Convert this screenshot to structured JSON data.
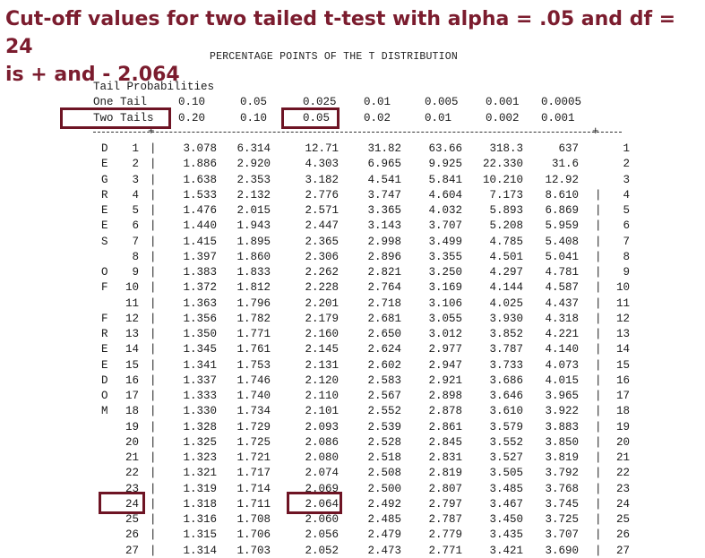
{
  "headline": {
    "line1": "Cut-off values for two tailed t-test with alpha = .05 and df = 24",
    "line2": "is + and - 2.064"
  },
  "subtitle": "PERCENTAGE POINTS OF THE T DISTRIBUTION",
  "table": {
    "tail_heading": "Tail Probabilities",
    "one_tail_label": "One Tail",
    "two_tails_label": "Two Tails",
    "one_tail_values": [
      "0.10",
      "0.05",
      "0.025",
      "0.01",
      "0.005",
      "0.001",
      "0.0005"
    ],
    "two_tail_values": [
      "0.20",
      "0.10",
      "0.05",
      "0.02",
      "0.01",
      "0.002",
      "0.001"
    ],
    "side_letters": [
      "D",
      "E",
      "G",
      "R",
      "E",
      "E",
      "S",
      "",
      "O",
      "F",
      "",
      "F",
      "R",
      "E",
      "E",
      "D",
      "O",
      "M",
      "",
      "",
      "",
      "",
      "",
      "",
      "",
      "",
      ""
    ],
    "rows": [
      {
        "df": "1",
        "v": [
          "3.078",
          "6.314",
          "12.71",
          "31.82",
          "63.66",
          "318.3",
          "637"
        ]
      },
      {
        "df": "2",
        "v": [
          "1.886",
          "2.920",
          "4.303",
          "6.965",
          "9.925",
          "22.330",
          "31.6"
        ]
      },
      {
        "df": "3",
        "v": [
          "1.638",
          "2.353",
          "3.182",
          "4.541",
          "5.841",
          "10.210",
          "12.92"
        ]
      },
      {
        "df": "4",
        "v": [
          "1.533",
          "2.132",
          "2.776",
          "3.747",
          "4.604",
          "7.173",
          "8.610"
        ]
      },
      {
        "df": "5",
        "v": [
          "1.476",
          "2.015",
          "2.571",
          "3.365",
          "4.032",
          "5.893",
          "6.869"
        ]
      },
      {
        "df": "6",
        "v": [
          "1.440",
          "1.943",
          "2.447",
          "3.143",
          "3.707",
          "5.208",
          "5.959"
        ]
      },
      {
        "df": "7",
        "v": [
          "1.415",
          "1.895",
          "2.365",
          "2.998",
          "3.499",
          "4.785",
          "5.408"
        ]
      },
      {
        "df": "8",
        "v": [
          "1.397",
          "1.860",
          "2.306",
          "2.896",
          "3.355",
          "4.501",
          "5.041"
        ]
      },
      {
        "df": "9",
        "v": [
          "1.383",
          "1.833",
          "2.262",
          "2.821",
          "3.250",
          "4.297",
          "4.781"
        ]
      },
      {
        "df": "10",
        "v": [
          "1.372",
          "1.812",
          "2.228",
          "2.764",
          "3.169",
          "4.144",
          "4.587"
        ]
      },
      {
        "df": "11",
        "v": [
          "1.363",
          "1.796",
          "2.201",
          "2.718",
          "3.106",
          "4.025",
          "4.437"
        ]
      },
      {
        "df": "12",
        "v": [
          "1.356",
          "1.782",
          "2.179",
          "2.681",
          "3.055",
          "3.930",
          "4.318"
        ]
      },
      {
        "df": "13",
        "v": [
          "1.350",
          "1.771",
          "2.160",
          "2.650",
          "3.012",
          "3.852",
          "4.221"
        ]
      },
      {
        "df": "14",
        "v": [
          "1.345",
          "1.761",
          "2.145",
          "2.624",
          "2.977",
          "3.787",
          "4.140"
        ]
      },
      {
        "df": "15",
        "v": [
          "1.341",
          "1.753",
          "2.131",
          "2.602",
          "2.947",
          "3.733",
          "4.073"
        ]
      },
      {
        "df": "16",
        "v": [
          "1.337",
          "1.746",
          "2.120",
          "2.583",
          "2.921",
          "3.686",
          "4.015"
        ]
      },
      {
        "df": "17",
        "v": [
          "1.333",
          "1.740",
          "2.110",
          "2.567",
          "2.898",
          "3.646",
          "3.965"
        ]
      },
      {
        "df": "18",
        "v": [
          "1.330",
          "1.734",
          "2.101",
          "2.552",
          "2.878",
          "3.610",
          "3.922"
        ]
      },
      {
        "df": "19",
        "v": [
          "1.328",
          "1.729",
          "2.093",
          "2.539",
          "2.861",
          "3.579",
          "3.883"
        ]
      },
      {
        "df": "20",
        "v": [
          "1.325",
          "1.725",
          "2.086",
          "2.528",
          "2.845",
          "3.552",
          "3.850"
        ]
      },
      {
        "df": "21",
        "v": [
          "1.323",
          "1.721",
          "2.080",
          "2.518",
          "2.831",
          "3.527",
          "3.819"
        ]
      },
      {
        "df": "22",
        "v": [
          "1.321",
          "1.717",
          "2.074",
          "2.508",
          "2.819",
          "3.505",
          "3.792"
        ]
      },
      {
        "df": "23",
        "v": [
          "1.319",
          "1.714",
          "2.069",
          "2.500",
          "2.807",
          "3.485",
          "3.768"
        ]
      },
      {
        "df": "24",
        "v": [
          "1.318",
          "1.711",
          "2.064",
          "2.492",
          "2.797",
          "3.467",
          "3.745"
        ]
      },
      {
        "df": "25",
        "v": [
          "1.316",
          "1.708",
          "2.060",
          "2.485",
          "2.787",
          "3.450",
          "3.725"
        ]
      },
      {
        "df": "26",
        "v": [
          "1.315",
          "1.706",
          "2.056",
          "2.479",
          "2.779",
          "3.435",
          "3.707"
        ]
      },
      {
        "df": "27",
        "v": [
          "1.314",
          "1.703",
          "2.052",
          "2.473",
          "2.771",
          "3.421",
          "3.690"
        ]
      }
    ],
    "highlight_color": "#6e1424",
    "headline_color": "#7b1c2e"
  }
}
